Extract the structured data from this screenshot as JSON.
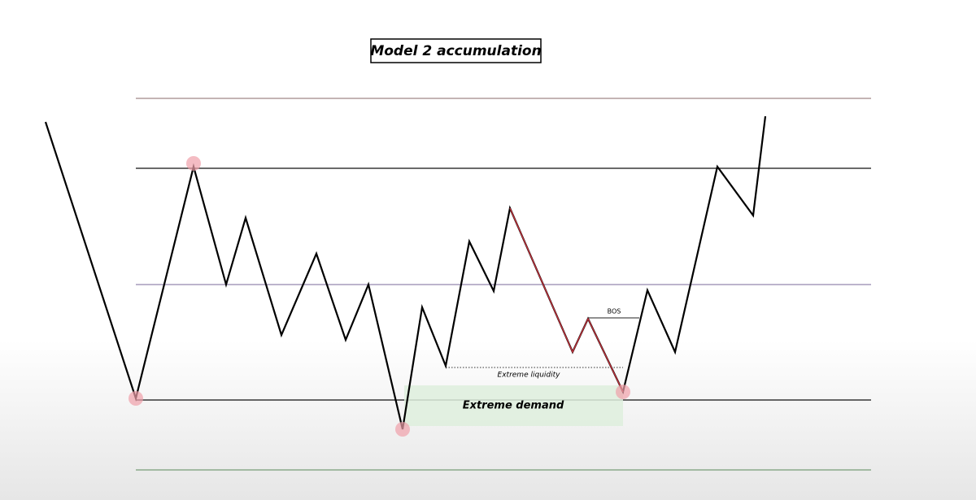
{
  "title": "Model 2 accumulation",
  "annotations": {
    "bos": "BOS",
    "liquidity": "Extreme liquidity",
    "demand": "Extreme demand"
  }
}
